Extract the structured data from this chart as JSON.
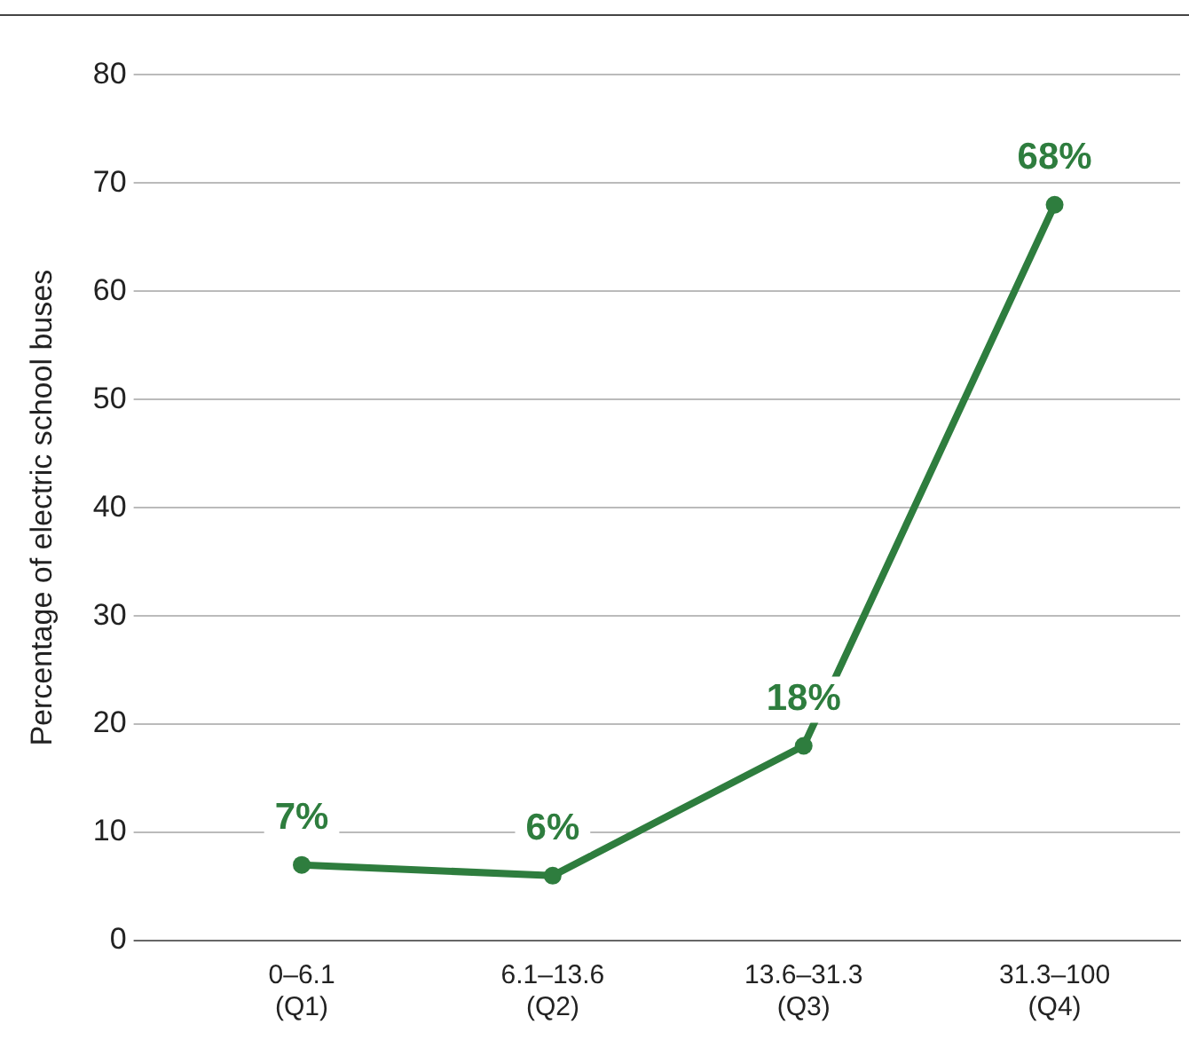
{
  "chart_data": {
    "type": "line",
    "ylabel": "Percentage of electric school buses",
    "categories": [
      "0–6.1\n(Q1)",
      "6.1–13.6\n(Q2)",
      "13.6–31.3\n(Q3)",
      "31.3–100\n(Q4)"
    ],
    "series": [
      {
        "color": "#2e7d3e",
        "values": [
          7,
          6,
          18,
          68
        ],
        "value_labels": [
          "7%",
          "6%",
          "18%",
          "68%"
        ]
      }
    ],
    "ylim": [
      0,
      80
    ],
    "yticks": [
      0,
      10,
      20,
      30,
      40,
      50,
      60,
      70,
      80
    ],
    "grid": "y",
    "legend": false,
    "marker": "circle",
    "line_style": "solid"
  }
}
